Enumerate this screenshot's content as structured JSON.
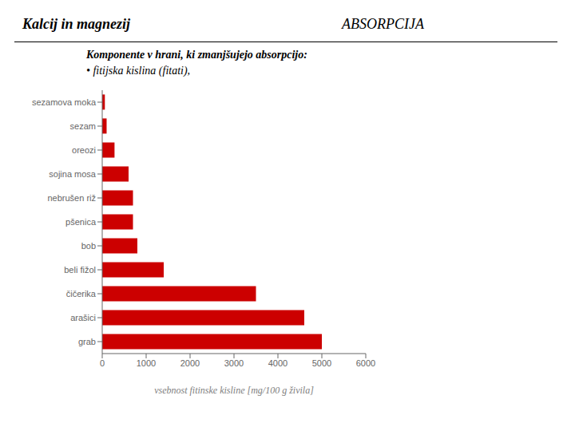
{
  "chart_data": {
    "type": "bar",
    "orientation": "horizontal",
    "title": "Kalcij in magnezij",
    "subtitle": "Komponente v hrani, ki zmanjšujejo absorpcijo:",
    "annotations": [
      "ABSORPCIJA",
      "• fitijska kislina (fitati),"
    ],
    "categories": [
      "sezamova moka",
      "sezam",
      "oreozi",
      "sojina mosa",
      "nebrušen riž",
      "pšenica",
      "bob",
      "beli fižol",
      "čičerika",
      "arašici",
      "grab"
    ],
    "values": [
      60,
      100,
      280,
      600,
      700,
      700,
      800,
      1400,
      3500,
      4600,
      5000
    ],
    "color": "#cc0000",
    "xlabel": "vsebnost fitinske kisline [mg/100 g živila]",
    "xlim": [
      0,
      6000
    ],
    "xticks": [
      0,
      1000,
      2000,
      3000,
      4000,
      5000,
      6000
    ],
    "grid": false
  }
}
